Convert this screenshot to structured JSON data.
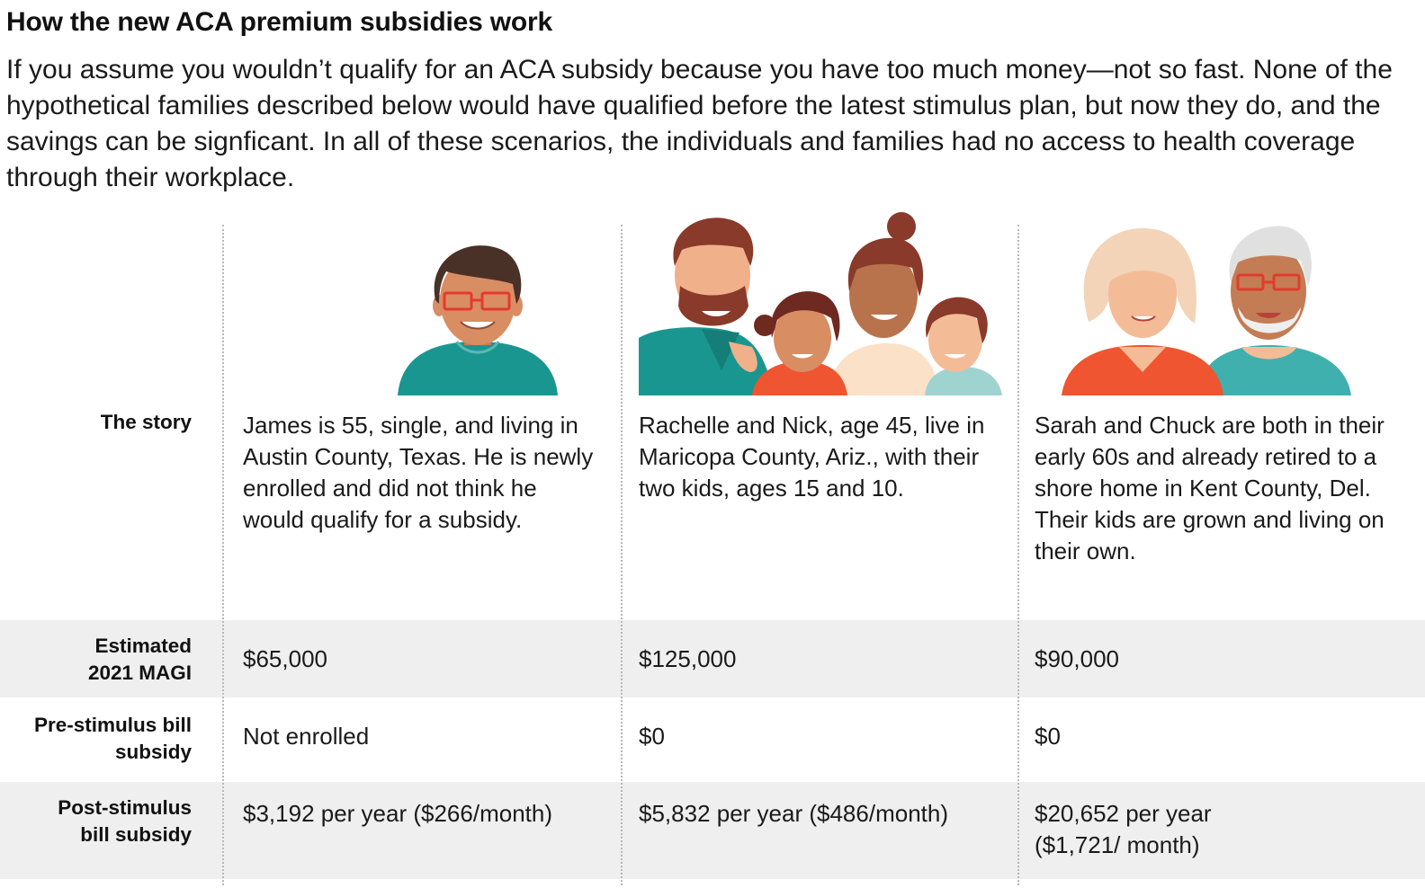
{
  "header": {
    "title": "How the new ACA premium subsidies work",
    "intro": "If you assume you wouldn’t qualify for an ACA subsidy because you have too much money—not so fast. None of the hypothetical families described below would have qualified before the latest stimulus plan, but now they do, and the savings can be signficant. In all of these scenarios, the individuals and families had no access to health coverage through their workplace."
  },
  "table": {
    "row_labels": {
      "story": "The story",
      "magi": [
        "Estimated",
        "2021 MAGI"
      ],
      "pre": [
        "Pre-stimulus bill",
        "subsidy"
      ],
      "post": [
        "Post-stimulus",
        "bill subsidy"
      ]
    },
    "columns": [
      {
        "illustration": "single-man-illustration",
        "story": "James is 55, single, and living in Austin County, Texas. He is newly enrolled and did not think he would qualify for a subsidy.",
        "magi": "$65,000",
        "pre": "Not enrolled",
        "post": "$3,192 per year ($266/month)"
      },
      {
        "illustration": "family-of-four-illustration",
        "story": "Rachelle and Nick, age 45, live in Maricopa County, Ariz., with their two kids, ages 15 and 10.",
        "magi": "$125,000",
        "pre": "$0",
        "post": "$5,832 per year ($486/month)"
      },
      {
        "illustration": "retired-couple-illustration",
        "story": "Sarah and Chuck are both in their early 60s and already retired to a shore home in Kent County, Del. Their kids are grown and living on their own.",
        "magi": "$90,000",
        "pre": "$0",
        "post": "$20,652 per year ($1,721/ month)"
      }
    ]
  },
  "colors": {
    "band": "#efefef",
    "teal": "#1a9690",
    "orange": "#ef5530",
    "skin_light": "#f3bc97",
    "skin_mid": "#d98d63",
    "skin_dark": "#b8734c",
    "hair_brown": "#8a3a2a",
    "hair_dark": "#4a3128"
  }
}
